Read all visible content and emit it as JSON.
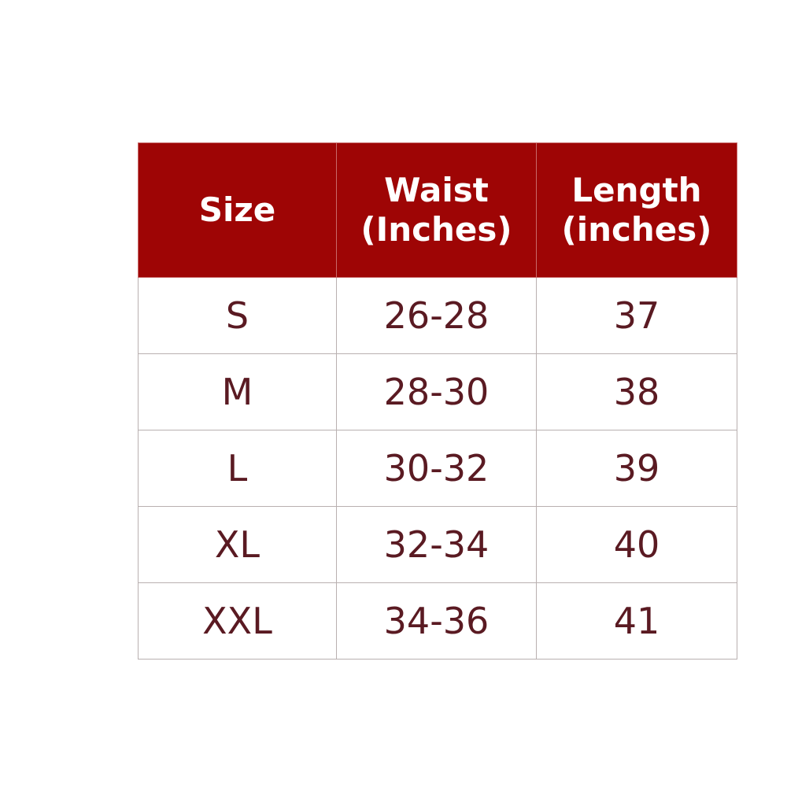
{
  "table": {
    "headers": [
      {
        "line1": "Size",
        "line2": ""
      },
      {
        "line1": "Waist",
        "line2": "(Inches)"
      },
      {
        "line1": "Length",
        "line2": "(inches)"
      }
    ],
    "rows": [
      [
        "S",
        "26-28",
        "37"
      ],
      [
        "M",
        "28-30",
        "38"
      ],
      [
        "L",
        "30-32",
        "39"
      ],
      [
        "XL",
        "32-34",
        "40"
      ],
      [
        "XXL",
        "34-36",
        "41"
      ]
    ],
    "colors": {
      "header_bg": "#9e0505",
      "header_text": "#ffffff",
      "body_text": "#5a1a22"
    }
  }
}
